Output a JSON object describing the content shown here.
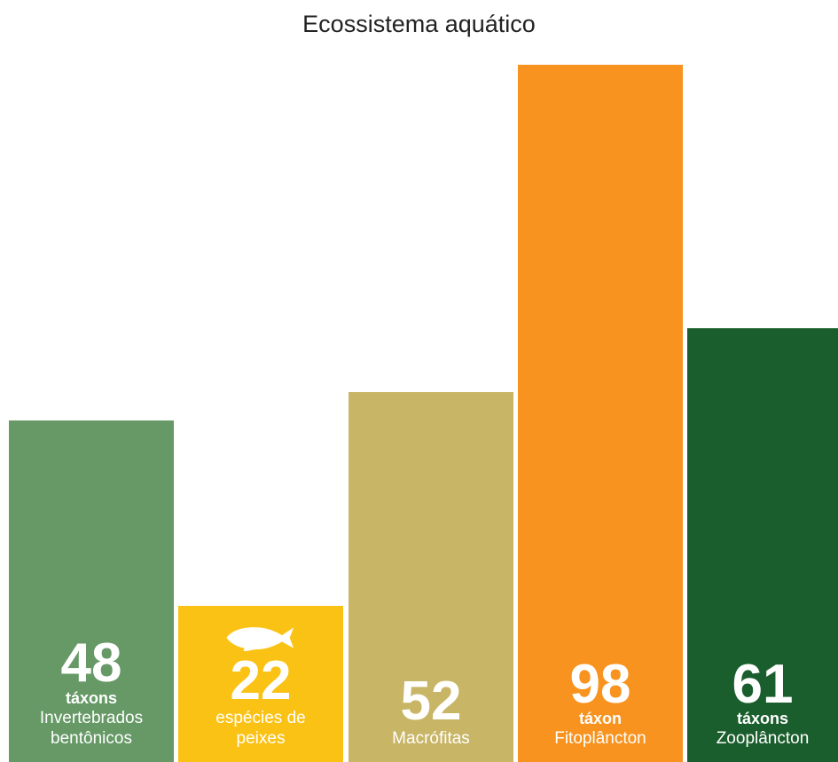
{
  "chart_data": {
    "type": "bar",
    "title": "Ecossistema aquátiсo",
    "categories": [
      "Invertebrados bentônicos",
      "espécies de peixes",
      "Macrófitas",
      "Fitoplâncton",
      "Zooplâncton"
    ],
    "values": [
      48,
      22,
      52,
      98,
      61
    ],
    "units": [
      "táxons",
      null,
      null,
      "táxon",
      "táxons"
    ],
    "colors": [
      "#669966",
      "#fbc216",
      "#c9b566",
      "#f7931e",
      "#1b5e2d"
    ],
    "ylim": [
      0,
      98
    ]
  }
}
